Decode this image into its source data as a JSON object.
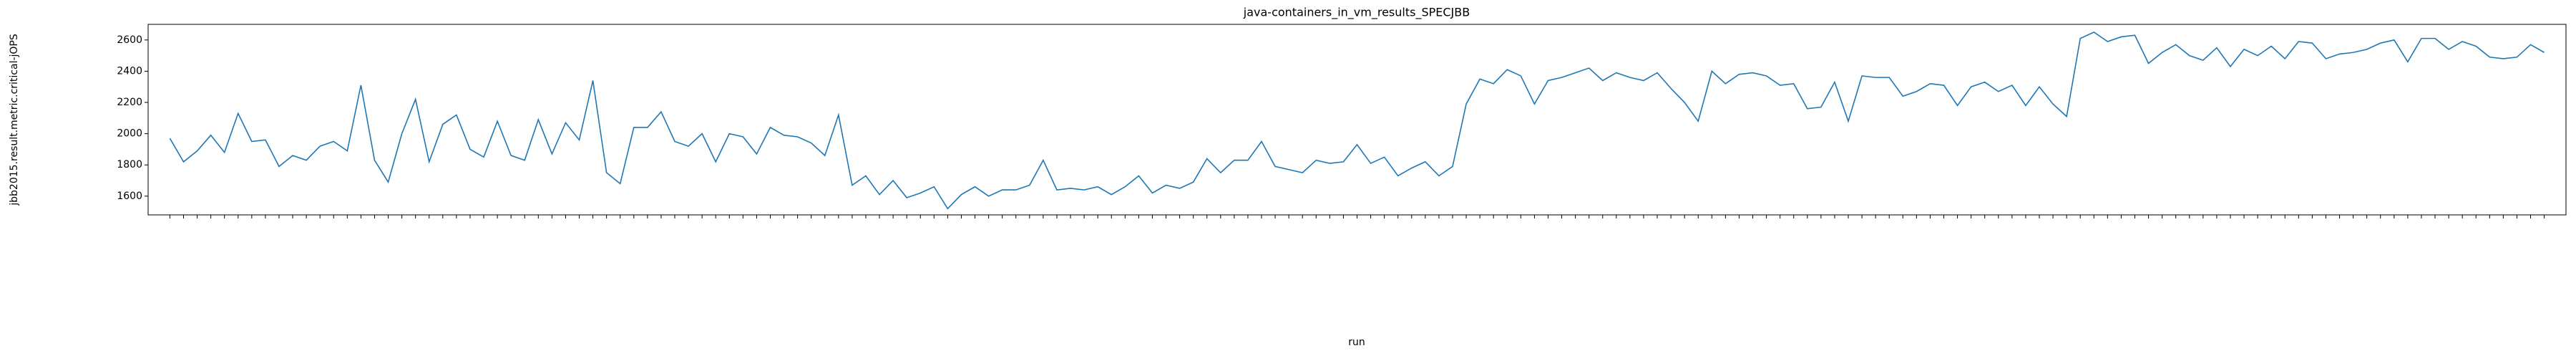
{
  "chart_data": {
    "type": "line",
    "title": "java-containers_in_vm_results_SPECJBB",
    "x_label": "run",
    "y_label": "jbb2015.result.metric.critical-jOPS",
    "categories": [
      null,
      null,
      null,
      null,
      null,
      null,
      null,
      null,
      null,
      null,
      null,
      null,
      null,
      null,
      null,
      null,
      null,
      null,
      null,
      null,
      null,
      null,
      null,
      null,
      null,
      null,
      null,
      null,
      null,
      null,
      null,
      null,
      null,
      null,
      null,
      null,
      null,
      null,
      null,
      null,
      null,
      null,
      null,
      null,
      null,
      null,
      null,
      null,
      null,
      null,
      null,
      null,
      null,
      null,
      null,
      null,
      null,
      null,
      null,
      null,
      null,
      null,
      null,
      null,
      null,
      null,
      null,
      null,
      null,
      null,
      null,
      null,
      null,
      null,
      null,
      null,
      null,
      null,
      null,
      null,
      null,
      null,
      null,
      null,
      null,
      null,
      null,
      null,
      null,
      null,
      null,
      null,
      null,
      null,
      null,
      null,
      null,
      null,
      null,
      null,
      null,
      null,
      null,
      null,
      null,
      null,
      null,
      null,
      null,
      null,
      null,
      null,
      null,
      null,
      null,
      null,
      null,
      null,
      null,
      null,
      null,
      null,
      null,
      null,
      null,
      null,
      null,
      null,
      null,
      null,
      null,
      null,
      null,
      null,
      null,
      null,
      null,
      null,
      null,
      null,
      null,
      null,
      null,
      null,
      null,
      null,
      null,
      null,
      null,
      null,
      null,
      null,
      null,
      null,
      null,
      null,
      null,
      null,
      null,
      null,
      null,
      null,
      null,
      null,
      null,
      null,
      null,
      null,
      null,
      null,
      null,
      null,
      null,
      null,
      null
    ],
    "series": [
      {
        "name": "jbb2015.result.metric.critical-jOPS",
        "color": "#1f77b4",
        "values": [
          1970,
          1820,
          1890,
          1990,
          1880,
          2130,
          1950,
          1960,
          1790,
          1860,
          1830,
          1920,
          1950,
          1890,
          2310,
          1830,
          1690,
          2000,
          2220,
          1820,
          2060,
          2120,
          1900,
          1850,
          2080,
          1860,
          1830,
          2090,
          1870,
          2070,
          1960,
          2340,
          1750,
          1680,
          2040,
          2040,
          2140,
          1950,
          1920,
          2000,
          1820,
          2000,
          1980,
          1870,
          2040,
          1990,
          1980,
          1940,
          1860,
          2120,
          1670,
          1730,
          1610,
          1700,
          1590,
          1620,
          1660,
          1520,
          1610,
          1660,
          1600,
          1640,
          1640,
          1670,
          1830,
          1640,
          1650,
          1640,
          1660,
          1610,
          1660,
          1730,
          1620,
          1670,
          1650,
          1690,
          1840,
          1750,
          1830,
          1830,
          1950,
          1790,
          1770,
          1750,
          1830,
          1810,
          1820,
          1930,
          1810,
          1850,
          1730,
          1780,
          1820,
          1730,
          1790,
          2190,
          2350,
          2320,
          2410,
          2370,
          2190,
          2340,
          2360,
          2390,
          2420,
          2340,
          2390,
          2360,
          2340,
          2390,
          2290,
          2200,
          2080,
          2400,
          2320,
          2380,
          2390,
          2370,
          2310,
          2320,
          2160,
          2170,
          2330,
          2080,
          2370,
          2360,
          2360,
          2240,
          2270,
          2320,
          2310,
          2180,
          2300,
          2330,
          2270,
          2310,
          2180,
          2300,
          2190,
          2110,
          2610,
          2650,
          2590,
          2620,
          2630,
          2450,
          2520,
          2570,
          2500,
          2470,
          2550,
          2430,
          2540,
          2500,
          2560,
          2480,
          2590,
          2580,
          2480,
          2510,
          2520,
          2540,
          2580,
          2600,
          2460,
          2610,
          2610,
          2540,
          2590,
          2560,
          2490,
          2480,
          2490,
          2570,
          2520
        ]
      }
    ],
    "ylim": [
      1480,
      2700
    ],
    "yticks": [
      1600,
      1800,
      2000,
      2200,
      2400,
      2600
    ]
  }
}
